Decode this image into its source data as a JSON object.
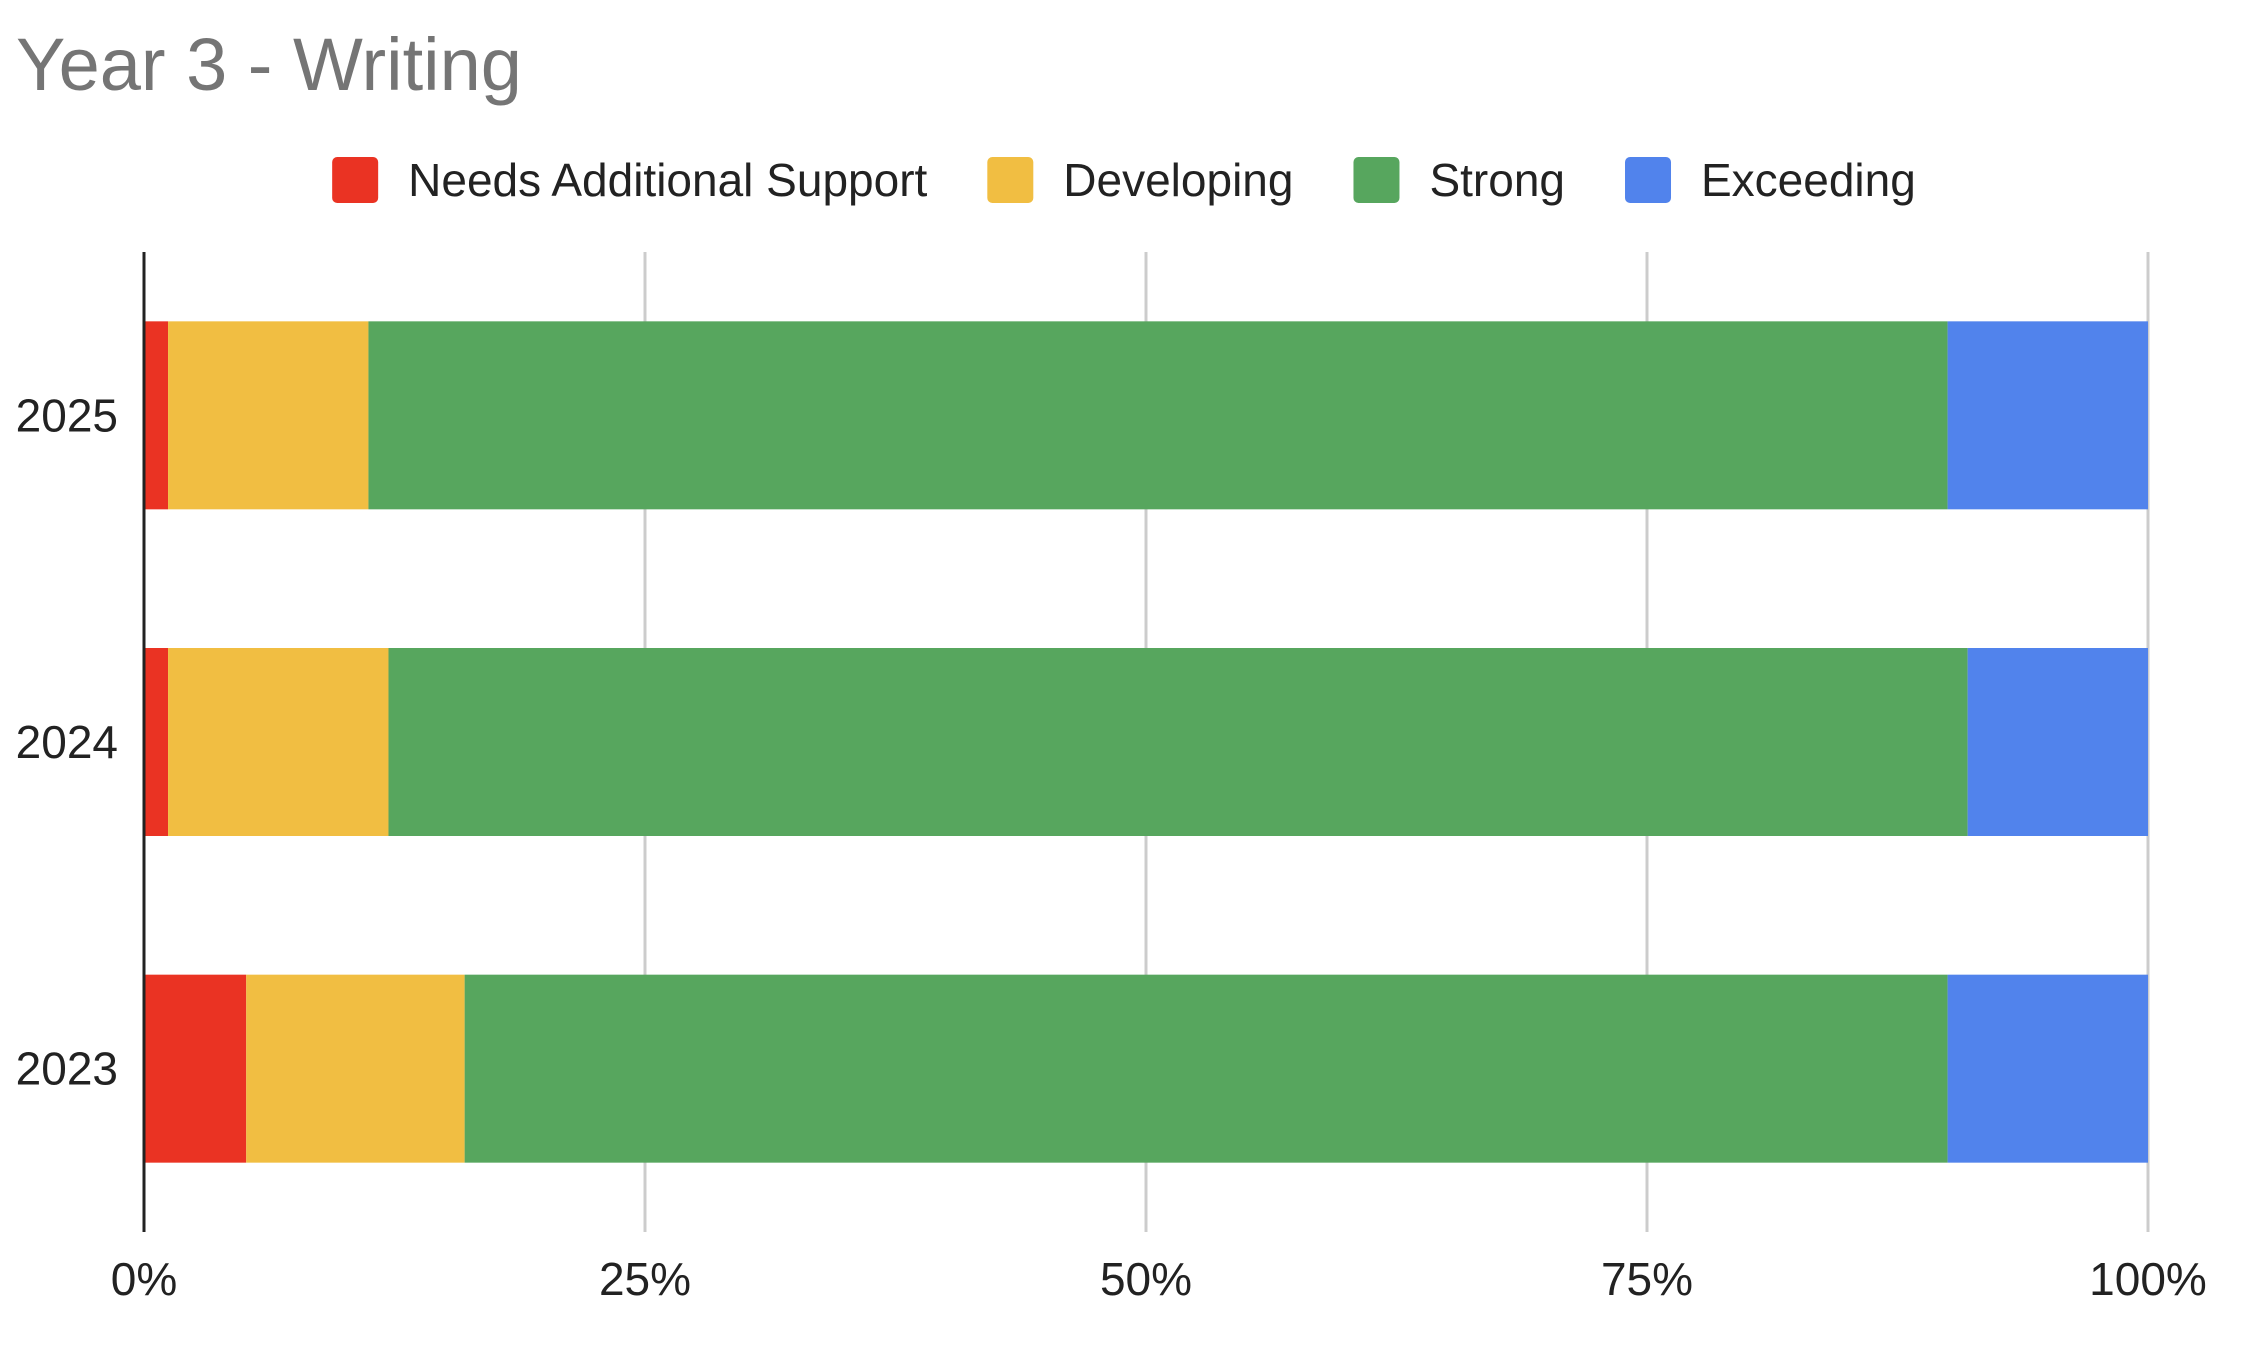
{
  "chart_data": {
    "type": "bar",
    "orientation": "horizontal",
    "stacked": "percent",
    "title": "Year 3 - Writing",
    "xlabel": "",
    "ylabel": "",
    "xlim": [
      0,
      100
    ],
    "grid": true,
    "legend_position": "top",
    "categories": [
      "2025",
      "2024",
      "2023"
    ],
    "x_ticks": [
      {
        "value": 0,
        "label": "0%"
      },
      {
        "value": 25,
        "label": "25%"
      },
      {
        "value": 50,
        "label": "50%"
      },
      {
        "value": 75,
        "label": "75%"
      },
      {
        "value": 100,
        "label": "100%"
      }
    ],
    "series": [
      {
        "name": "Needs Additional Support",
        "color": "#ea3323",
        "values": [
          1.2,
          1.2,
          5.1
        ]
      },
      {
        "name": "Developing",
        "color": "#f1be42",
        "values": [
          10.0,
          11.0,
          10.9
        ]
      },
      {
        "name": "Strong",
        "color": "#57a65e",
        "values": [
          78.8,
          78.8,
          74.0
        ]
      },
      {
        "name": "Exceeding",
        "color": "#5183ec",
        "values": [
          10.0,
          9.0,
          10.0
        ]
      }
    ]
  }
}
